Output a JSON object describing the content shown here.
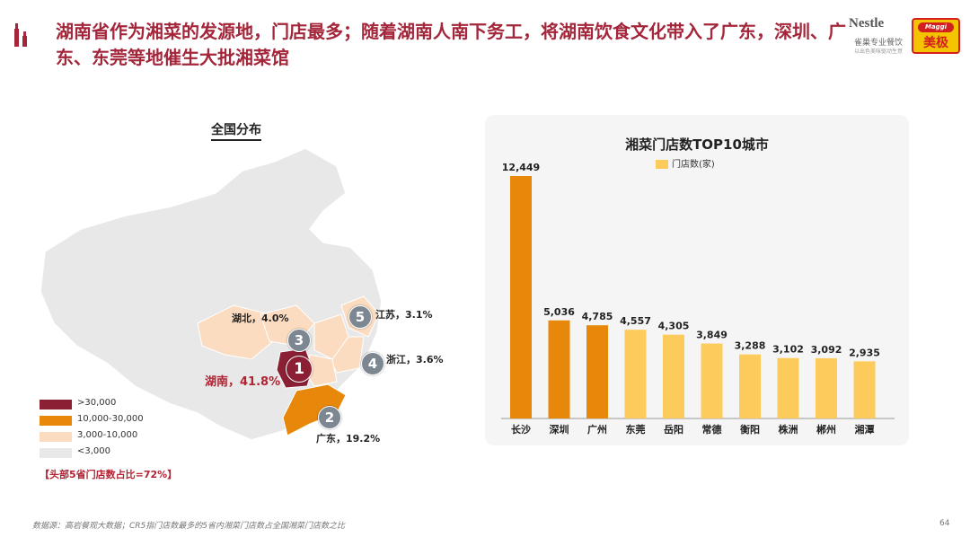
{
  "header": {
    "title": "湖南省作为湘菜的发源地，门店最多；随着湖南人南下务工，将湖南饮食文化带入了广东，深圳、广东、东莞等地催生大批湘菜馆",
    "brand_nestle": "Nestle",
    "brand_nestle_sub": "雀巢专业餐饮",
    "brand_nestle_sub2": "以出色美味驱动生意",
    "brand_maggi_top": "Maggi",
    "brand_maggi_cn": "美极"
  },
  "map": {
    "heading": "全国分布",
    "callouts": [
      {
        "num": "1",
        "label": "湖南，41.8%"
      },
      {
        "num": "2",
        "label": "广东，19.2%"
      },
      {
        "num": "3",
        "label": "湖北，4.0%"
      },
      {
        "num": "4",
        "label": "浙江，3.6%"
      },
      {
        "num": "5",
        "label": "江苏，3.1%"
      }
    ],
    "legend": [
      {
        "label": ">30,000",
        "color": "#8b1f34"
      },
      {
        "label": "10,000-30,000",
        "color": "#e8880a"
      },
      {
        "label": "3,000-10,000",
        "color": "#fbdcc0"
      },
      {
        "label": "<3,000",
        "color": "#e8e8e8"
      }
    ],
    "note": "【头部5省门店数占比=72%】"
  },
  "chart_data": {
    "type": "bar",
    "title": "湘菜门店数TOP10城市",
    "legend": "门店数(家)",
    "categories": [
      "长沙",
      "深圳",
      "广州",
      "东莞",
      "岳阳",
      "常德",
      "衡阳",
      "株洲",
      "郴州",
      "湘潭"
    ],
    "values": [
      12449,
      5036,
      4785,
      4557,
      4305,
      3849,
      3288,
      3102,
      3092,
      2935
    ],
    "value_labels": [
      "12,449",
      "5,036",
      "4,785",
      "4,557",
      "4,305",
      "3,849",
      "3,288",
      "3,102",
      "3,092",
      "2,935"
    ],
    "colors": [
      "#e8880a",
      "#e8880a",
      "#e8880a",
      "#fccb5c",
      "#fccb5c",
      "#fccb5c",
      "#fccb5c",
      "#fccb5c",
      "#fccb5c",
      "#fccb5c"
    ],
    "ylim": [
      0,
      12449
    ],
    "xlabel": "",
    "ylabel": ""
  },
  "footer": {
    "source": "数据源：高岩餐观大数据；CR5指门店数最多的5省内湘菜门店数占全国湘菜门店数之比",
    "page": "64"
  }
}
